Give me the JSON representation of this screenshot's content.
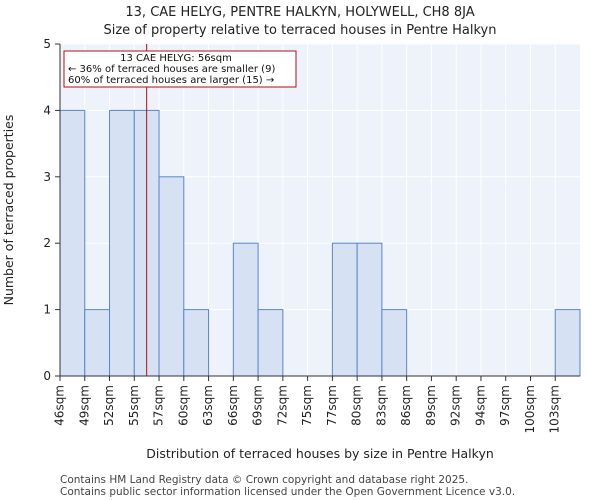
{
  "chart_data": {
    "type": "bar",
    "title": "13, CAE HELYG, PENTRE HALKYN, HOLYWELL, CH8 8JA",
    "subtitle": "Size of property relative to terraced houses in Pentre Halkyn",
    "xlabel": "Distribution of terraced houses by size in Pentre Halkyn",
    "ylabel": "Number of terraced properties",
    "categories": [
      "46sqm",
      "49sqm",
      "52sqm",
      "55sqm",
      "57sqm",
      "60sqm",
      "63sqm",
      "66sqm",
      "69sqm",
      "72sqm",
      "75sqm",
      "77sqm",
      "80sqm",
      "83sqm",
      "86sqm",
      "89sqm",
      "92sqm",
      "94sqm",
      "97sqm",
      "100sqm",
      "103sqm"
    ],
    "values": [
      4,
      1,
      4,
      4,
      3,
      1,
      0,
      2,
      1,
      0,
      0,
      2,
      2,
      1,
      0,
      0,
      0,
      0,
      0,
      0,
      1
    ],
    "ylim": [
      0,
      5
    ],
    "yticks": [
      0,
      1,
      2,
      3,
      4,
      5
    ],
    "grid": true,
    "marker": {
      "value_sqm": 56,
      "bin_position": 3.5,
      "color": "#aa1111",
      "annotation": [
        "13 CAE HELYG: 56sqm",
        "← 36% of terraced houses are smaller (9)",
        "60% of terraced houses are larger (15) →"
      ]
    },
    "colors": {
      "bar_fill": "#d6e2f4",
      "bar_stroke": "#5a86c5",
      "plot_bg": "#eef2fb",
      "grid": "#ffffff"
    }
  },
  "footer": [
    "Contains HM Land Registry data © Crown copyright and database right 2025.",
    "Contains public sector information licensed under the Open Government Licence v3.0."
  ]
}
